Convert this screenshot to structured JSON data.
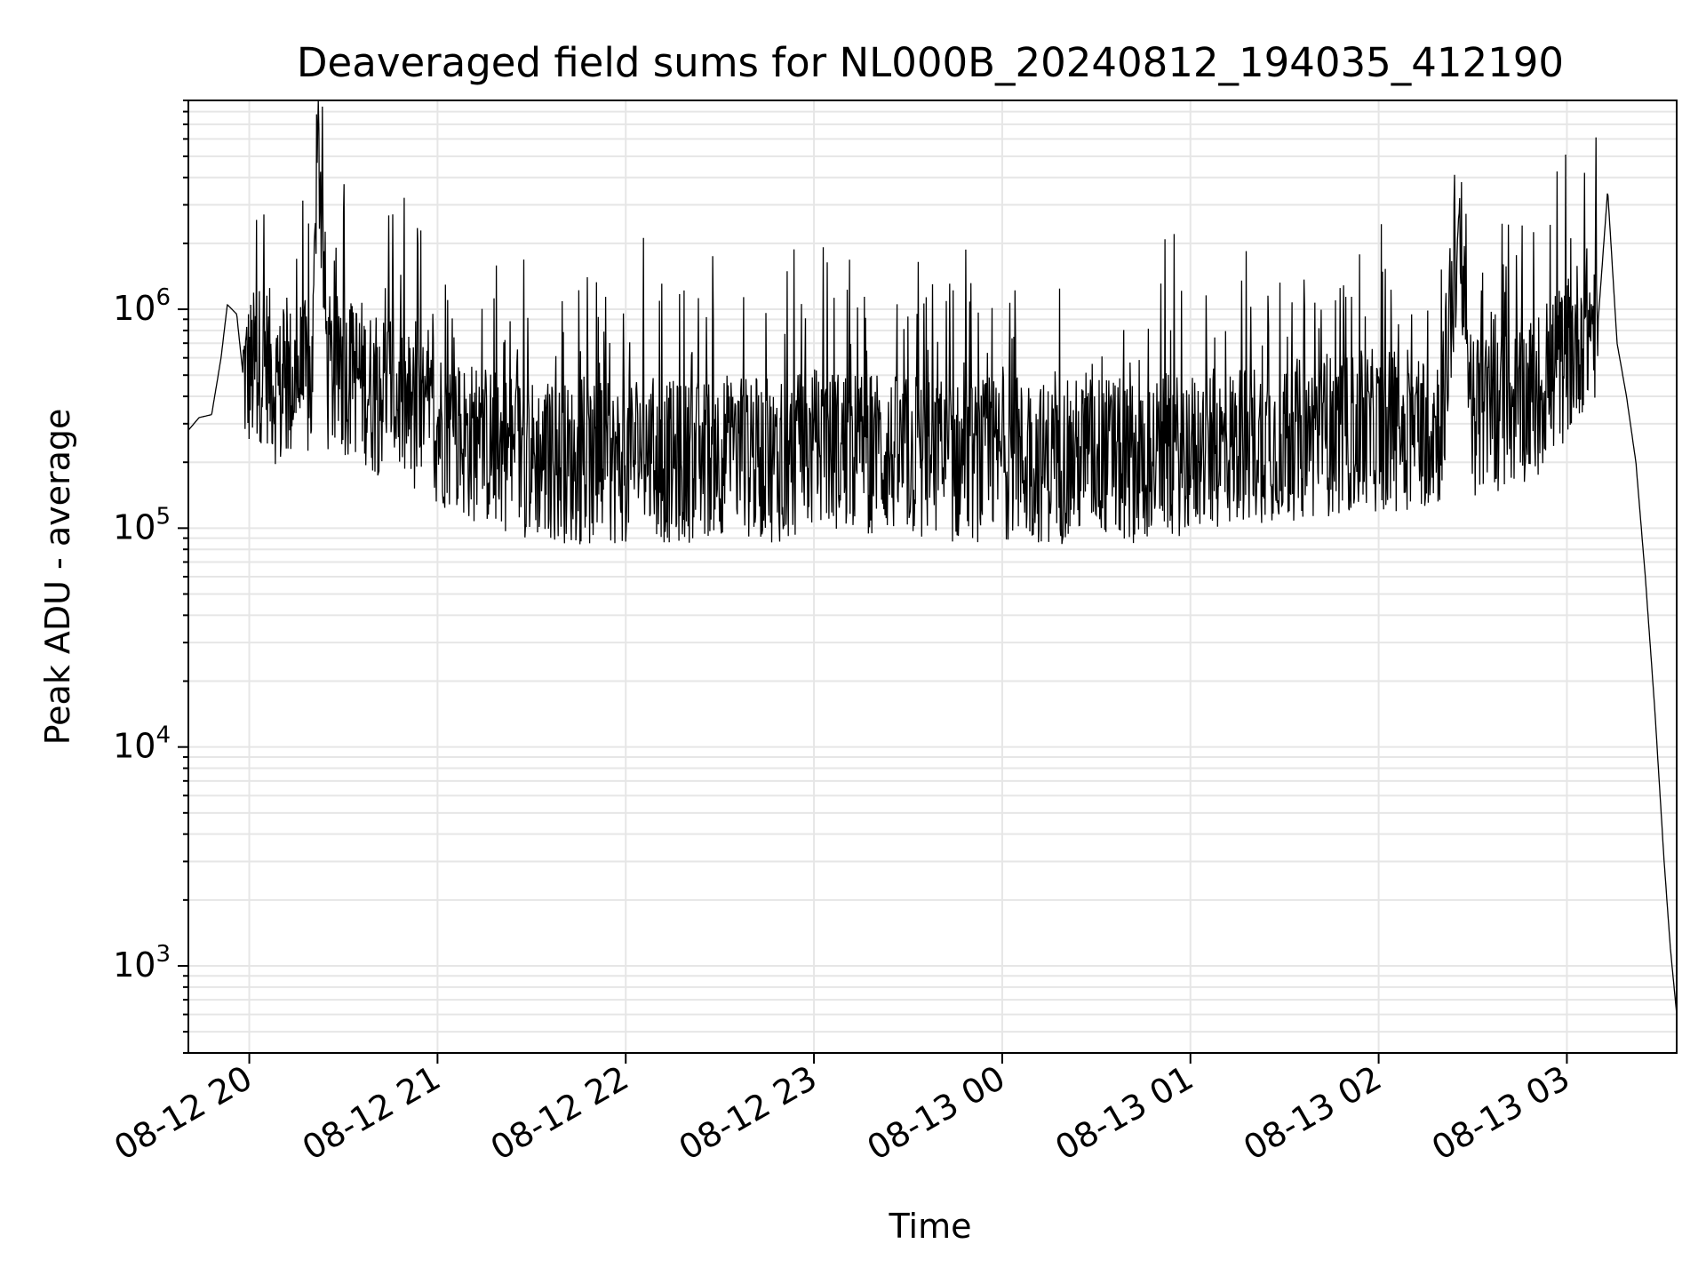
{
  "chart_data": {
    "type": "line",
    "title": "Deaveraged field sums for NL000B_20240812_194035_412190",
    "xlabel": "Time",
    "ylabel": "Peak ADU - average",
    "x_scale": "time",
    "y_scale": "log",
    "xlim": [
      "2024-08-12 19:40:35",
      "2024-08-13 03:35:00"
    ],
    "ylim": [
      400,
      9000000
    ],
    "grid": true,
    "line_color": "#000000",
    "grid_color": "#e6e6e6",
    "x_ticks": [
      {
        "value": "2024-08-12 20:00",
        "label": "08-12 20"
      },
      {
        "value": "2024-08-12 21:00",
        "label": "08-12 21"
      },
      {
        "value": "2024-08-12 22:00",
        "label": "08-12 22"
      },
      {
        "value": "2024-08-12 23:00",
        "label": "08-12 23"
      },
      {
        "value": "2024-08-13 00:00",
        "label": "08-13 00"
      },
      {
        "value": "2024-08-13 01:00",
        "label": "08-13 01"
      },
      {
        "value": "2024-08-13 02:00",
        "label": "08-13 02"
      },
      {
        "value": "2024-08-13 03:00",
        "label": "08-13 03"
      }
    ],
    "y_ticks": [
      {
        "value": 1000,
        "base": "10",
        "exp": "3"
      },
      {
        "value": 10000,
        "base": "10",
        "exp": "4"
      },
      {
        "value": 100000,
        "base": "10",
        "exp": "5"
      },
      {
        "value": 1000000,
        "base": "10",
        "exp": "6"
      }
    ],
    "series": [
      {
        "x": [
          "2024-08-12 19:40:35",
          "2024-08-12 19:44",
          "2024-08-12 19:48",
          "2024-08-12 19:51",
          "2024-08-12 19:53",
          "2024-08-12 19:56",
          "2024-08-12 19:58",
          "2024-08-12 20:00",
          "2024-08-12 20:05",
          "2024-08-12 20:10",
          "2024-08-12 20:15",
          "2024-08-12 20:20",
          "2024-08-12 20:22",
          "2024-08-12 20:23",
          "2024-08-12 20:25",
          "2024-08-12 20:30",
          "2024-08-12 20:35",
          "2024-08-12 20:40",
          "2024-08-12 20:45",
          "2024-08-12 20:50",
          "2024-08-12 20:55",
          "2024-08-12 21:00",
          "2024-08-12 21:10",
          "2024-08-12 21:20",
          "2024-08-12 21:30",
          "2024-08-12 21:40",
          "2024-08-12 21:50",
          "2024-08-12 22:00",
          "2024-08-12 22:05",
          "2024-08-12 22:10",
          "2024-08-12 22:20",
          "2024-08-12 22:30",
          "2024-08-12 22:40",
          "2024-08-12 22:50",
          "2024-08-12 23:00",
          "2024-08-12 23:10",
          "2024-08-12 23:20",
          "2024-08-12 23:30",
          "2024-08-12 23:40",
          "2024-08-12 23:50",
          "2024-08-13 00:00",
          "2024-08-13 00:10",
          "2024-08-13 00:20",
          "2024-08-13 00:30",
          "2024-08-13 00:40",
          "2024-08-13 00:50",
          "2024-08-13 01:00",
          "2024-08-13 01:10",
          "2024-08-13 01:20",
          "2024-08-13 01:30",
          "2024-08-13 01:40",
          "2024-08-13 01:50",
          "2024-08-13 02:00",
          "2024-08-13 02:10",
          "2024-08-13 02:20",
          "2024-08-13 02:25",
          "2024-08-13 02:30",
          "2024-08-13 02:40",
          "2024-08-13 02:50",
          "2024-08-13 03:00",
          "2024-08-13 03:05",
          "2024-08-13 03:10",
          "2024-08-13 03:13",
          "2024-08-13 03:16",
          "2024-08-13 03:19",
          "2024-08-13 03:22",
          "2024-08-13 03:25",
          "2024-08-13 03:28",
          "2024-08-13 03:31",
          "2024-08-13 03:33",
          "2024-08-13 03:35"
        ],
        "y": [
          280000,
          320000,
          330000,
          600000,
          1050000,
          950000,
          500000,
          500000,
          600000,
          400000,
          500000,
          450000,
          6000000,
          2800000,
          500000,
          500000,
          500000,
          400000,
          450000,
          350000,
          300000,
          300000,
          250000,
          230000,
          210000,
          200000,
          190000,
          200000,
          250000,
          200000,
          200000,
          220000,
          210000,
          200000,
          230000,
          230000,
          220000,
          210000,
          200000,
          200000,
          210000,
          200000,
          200000,
          220000,
          200000,
          210000,
          220000,
          230000,
          250000,
          250000,
          260000,
          270000,
          280000,
          280000,
          300000,
          2000000,
          330000,
          350000,
          400000,
          600000,
          800000,
          900000,
          3500000,
          700000,
          400000,
          200000,
          60000,
          15000,
          3000,
          1200,
          600
        ],
        "noise": {
          "low": 100000,
          "high": 1000000
        }
      }
    ]
  }
}
